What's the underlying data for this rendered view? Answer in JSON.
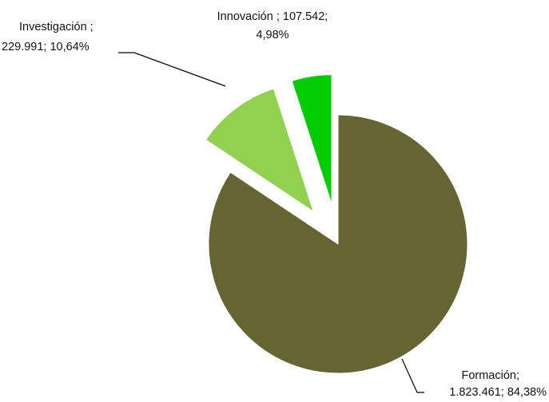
{
  "chart_data": {
    "type": "pie",
    "title": "",
    "categories": [
      "Formación",
      "Investigación",
      "Innovación"
    ],
    "values": [
      1823461,
      229991,
      107542
    ],
    "percentages": [
      84.38,
      10.64,
      4.98
    ],
    "colors": [
      "#676433",
      "#92D050",
      "#00CC00"
    ],
    "exploded": [
      false,
      true,
      true
    ],
    "labels": [
      {
        "line1": "Formación;",
        "line2": "1.823.461; 84,38%"
      },
      {
        "line1": "Investigación ;",
        "line2": "229.991; 10,64%"
      },
      {
        "line1": "Innovación ; 107.542;",
        "line2": "4,98%"
      }
    ],
    "legend": "none"
  }
}
